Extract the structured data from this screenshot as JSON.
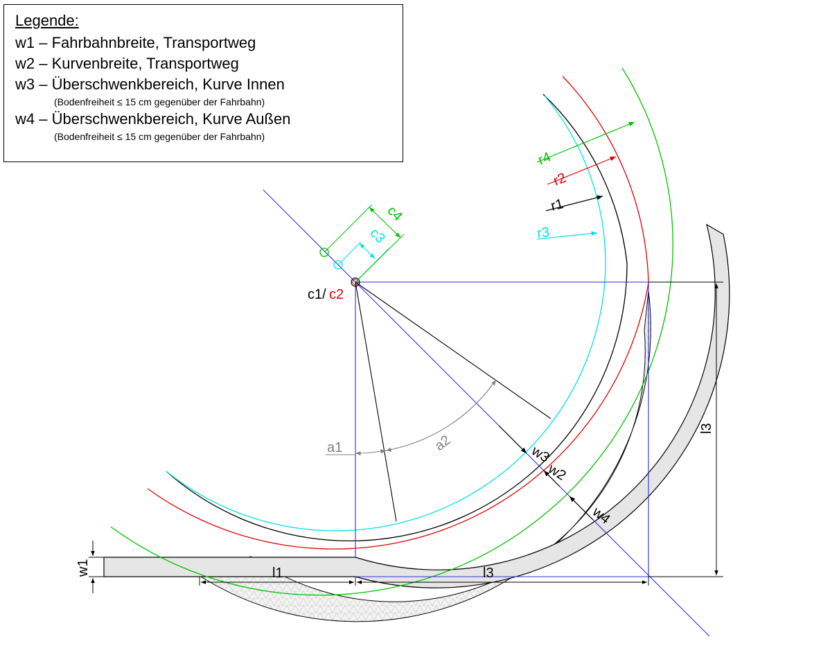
{
  "legend": {
    "title": "Legende:",
    "items": [
      {
        "text": "w1 – Fahrbahnbreite, Transportweg",
        "note": ""
      },
      {
        "text": "w2 – Kurvenbreite, Transportweg",
        "note": ""
      },
      {
        "text": "w3 – Überschwenkbereich, Kurve Innen",
        "note": "(Bodenfreiheit ≤ 15 cm gegenüber der Fahrbahn)"
      },
      {
        "text": "w4 – Überschwenkbereich, Kurve Außen",
        "note": "(Bodenfreiheit ≤ 15 cm gegenüber der Fahrbahn)"
      }
    ]
  },
  "labels": {
    "c1": "c1/",
    "c2": "c2",
    "c3": "c3",
    "c4": "c4",
    "r1": "r1",
    "r2": "r2",
    "r3": "r3",
    "r4": "r4",
    "a1": "a1",
    "a2": "a2",
    "w1": "w1",
    "w2": "w2",
    "w3": "w3",
    "w4": "w4",
    "l1": "l1",
    "l3_bottom": "l3",
    "l3_right": "l3"
  },
  "colors": {
    "black": "#000000",
    "red": "#e00000",
    "green": "#00c000",
    "cyan": "#00e0e8",
    "blue": "#2a2ae0",
    "grey": "#808080",
    "road": "#e6e6e6"
  }
}
